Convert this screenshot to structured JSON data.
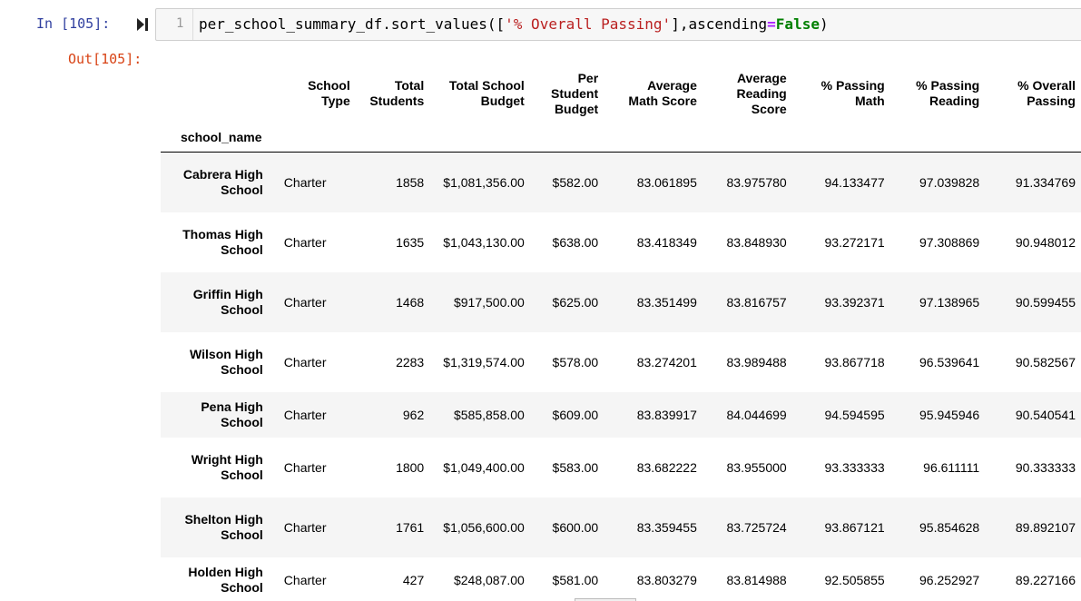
{
  "cell": {
    "in_prompt": "In [105]:",
    "out_prompt": "Out[105]:",
    "line_number": "1",
    "code": {
      "prefix": "per_school_summary_df.sort_values([",
      "string_arg": "'% Overall Passing'",
      "middle": "],ascending",
      "op": "=",
      "keyword": "False",
      "suffix": ")"
    },
    "run_icon": "run-step-icon"
  },
  "table": {
    "index_name": "school_name",
    "columns": [
      [
        "School",
        "Type"
      ],
      [
        "Total",
        "Students"
      ],
      [
        "Total School",
        "Budget"
      ],
      [
        "Per",
        "Student",
        "Budget"
      ],
      [
        "Average",
        "Math Score"
      ],
      [
        "Average",
        "Reading",
        "Score"
      ],
      [
        "% Passing",
        "Math"
      ],
      [
        "% Passing",
        "Reading"
      ],
      [
        "% Overall",
        "Passing"
      ]
    ],
    "rows": [
      {
        "name": [
          "Cabrera High",
          "School"
        ],
        "cells": [
          "Charter",
          "1858",
          "$1,081,356.00",
          "$582.00",
          "83.061895",
          "83.975780",
          "94.133477",
          "97.039828",
          "91.334769"
        ]
      },
      {
        "name": [
          "Thomas High",
          "School"
        ],
        "cells": [
          "Charter",
          "1635",
          "$1,043,130.00",
          "$638.00",
          "83.418349",
          "83.848930",
          "93.272171",
          "97.308869",
          "90.948012"
        ]
      },
      {
        "name": [
          "Griffin High",
          "School"
        ],
        "cells": [
          "Charter",
          "1468",
          "$917,500.00",
          "$625.00",
          "83.351499",
          "83.816757",
          "93.392371",
          "97.138965",
          "90.599455"
        ]
      },
      {
        "name": [
          "Wilson High",
          "School"
        ],
        "cells": [
          "Charter",
          "2283",
          "$1,319,574.00",
          "$578.00",
          "83.274201",
          "83.989488",
          "93.867718",
          "96.539641",
          "90.582567"
        ]
      },
      {
        "name": [
          "Pena High",
          "School"
        ],
        "cells": [
          "Charter",
          "962",
          "$585,858.00",
          "$609.00",
          "83.839917",
          "84.044699",
          "94.594595",
          "95.945946",
          "90.540541"
        ]
      },
      {
        "name": [
          "Wright High",
          "School"
        ],
        "cells": [
          "Charter",
          "1800",
          "$1,049,400.00",
          "$583.00",
          "83.682222",
          "83.955000",
          "93.333333",
          "96.611111",
          "90.333333"
        ]
      },
      {
        "name": [
          "Shelton High",
          "School"
        ],
        "cells": [
          "Charter",
          "1761",
          "$1,056,600.00",
          "$600.00",
          "83.359455",
          "83.725724",
          "93.867121",
          "95.854628",
          "89.892107"
        ]
      },
      {
        "name": [
          "Holden High",
          "School"
        ],
        "cells": [
          "Charter",
          "427",
          "$248,087.00",
          "$581.00",
          "83.803279",
          "83.814988",
          "92.505855",
          "96.252927",
          "89.227166"
        ]
      }
    ]
  }
}
